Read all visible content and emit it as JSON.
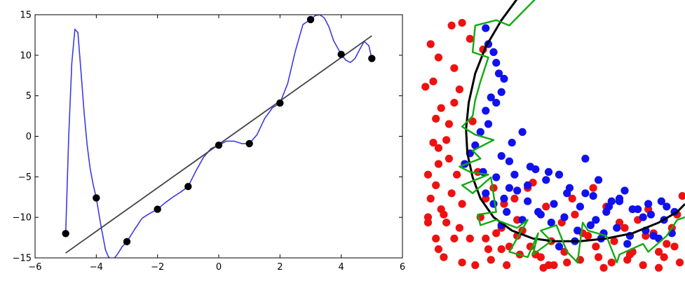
{
  "chart_data": [
    {
      "type": "line",
      "title": "",
      "xlabel": "",
      "ylabel": "",
      "xlim": [
        -6,
        6
      ],
      "ylim": [
        -15,
        15
      ],
      "xticks": [
        -6,
        -4,
        -2,
        0,
        2,
        4,
        6
      ],
      "yticks": [
        -15,
        -10,
        -5,
        0,
        5,
        10,
        15
      ],
      "grid": false,
      "legend": "none",
      "colors": {
        "points": "#000000",
        "fit_line": "#444444",
        "interp_curve": "#3a3ae8"
      },
      "points": {
        "x": [
          -5,
          -4,
          -3,
          -2,
          -1,
          0,
          1,
          2,
          3,
          4,
          5
        ],
        "y": [
          -12,
          -7.6,
          -13,
          -9,
          -6.2,
          -1.1,
          -0.9,
          4.1,
          14.4,
          10.1,
          9.6
        ]
      },
      "fit_line": {
        "x": [
          -5,
          5
        ],
        "y": [
          -14.4,
          12.4
        ]
      },
      "interp_curve": {
        "x": [
          -5,
          -4.9,
          -4.8,
          -4.7,
          -4.6,
          -4.5,
          -4.4,
          -4.3,
          -4.2,
          -4.1,
          -4,
          -3.85,
          -3.7,
          -3.6,
          -3.5,
          -3.4,
          -3.3,
          -3.15,
          -3,
          -2.75,
          -2.5,
          -2.25,
          -2,
          -1.75,
          -1.5,
          -1.25,
          -1,
          -0.75,
          -0.5,
          -0.25,
          0,
          0.25,
          0.5,
          0.75,
          1,
          1.25,
          1.5,
          1.75,
          2,
          2.25,
          2.5,
          2.75,
          3,
          3.15,
          3.3,
          3.45,
          3.6,
          3.75,
          4,
          4.15,
          4.3,
          4.45,
          4.6,
          4.75,
          4.9,
          5
        ],
        "y": [
          -12,
          0,
          9,
          13.2,
          12.8,
          8,
          3,
          -1,
          -4,
          -6,
          -7.6,
          -11,
          -14,
          -14.9,
          -15.2,
          -15,
          -14.5,
          -13.6,
          -13,
          -11.5,
          -10.1,
          -9.5,
          -9,
          -8.2,
          -7.5,
          -6.9,
          -6.2,
          -4.3,
          -2.6,
          -1.5,
          -1.1,
          -0.6,
          -0.6,
          -0.9,
          -0.9,
          0.2,
          2.2,
          3.5,
          4.1,
          6.5,
          10.5,
          13.8,
          14.4,
          14.9,
          15,
          14.6,
          13.5,
          11.8,
          10.1,
          9.4,
          9.1,
          9.6,
          10.7,
          11.7,
          11.2,
          9.6
        ]
      }
    },
    {
      "type": "scatter",
      "title": "",
      "xlabel": "",
      "ylabel": "",
      "axes": "none",
      "xlim": [
        0,
        1
      ],
      "ylim": [
        0,
        1
      ],
      "grid": false,
      "legend": "none",
      "colors": {
        "red": "#ee1111",
        "blue": "#1111ee",
        "smooth_boundary": "#000000",
        "overfit_boundary": "#11aa11"
      },
      "series": [
        {
          "color": "red",
          "x": [
            0.15,
            0.18,
            0.23,
            0.03,
            0.11,
            0.06,
            0.04,
            0.12,
            0.01,
            0.14,
            0.07,
            0.12,
            0.05,
            0.1,
            0.19,
            0.04,
            0.06,
            0.09,
            0.06,
            0.1,
            0.02,
            0.13,
            0.05,
            0.11,
            0.03,
            0.15,
            0.07,
            0.02,
            0.09,
            0.14,
            0.05,
            0.12,
            0.06,
            0.08,
            0.15,
            0.2,
            0.26,
            0.32,
            0.24,
            0.3,
            0.36,
            0.41,
            0.45,
            0.48,
            0.54,
            0.6,
            0.66,
            0.72,
            0.79,
            0.84,
            0.92,
            0.96,
            0.98,
            0.22,
            0.28,
            0.33,
            0.38,
            0.43,
            0.49,
            0.55,
            0.61,
            0.67,
            0.73,
            0.78,
            0.85,
            0.9,
            0.95,
            0.18,
            0.25,
            0.31,
            0.36,
            0.4,
            0.47,
            0.53,
            0.58,
            0.63,
            0.7,
            0.77,
            0.82,
            0.88,
            0.93,
            0.97,
            0.27,
            0.35,
            0.42,
            0.52,
            0.57,
            0.65,
            0.75,
            0.86,
            0.02,
            0.08,
            0.21,
            0.3,
            0.46,
            0.69,
            0.8,
            0.9,
            0.99,
            0.24,
            0.37,
            0.5
          ],
          "y": [
            0.93,
            0.87,
            0.83,
            0.85,
            0.92,
            0.8,
            0.71,
            0.76,
            0.69,
            0.68,
            0.61,
            0.63,
            0.57,
            0.55,
            0.56,
            0.48,
            0.46,
            0.49,
            0.4,
            0.42,
            0.36,
            0.36,
            0.32,
            0.29,
            0.27,
            0.25,
            0.23,
            0.2,
            0.18,
            0.16,
            0.12,
            0.12,
            0.08,
            0.05,
            0.03,
            0.02,
            0.04,
            0.02,
            0.12,
            0.16,
            0.13,
            0.09,
            0.05,
            0.02,
            0.07,
            0.04,
            0.09,
            0.03,
            0.06,
            0.02,
            0.05,
            0.09,
            0.03,
            0.2,
            0.14,
            0.09,
            0.15,
            0.06,
            0.11,
            0.03,
            0.14,
            0.05,
            0.11,
            0.04,
            0.13,
            0.07,
            0.16,
            0.12,
            0.08,
            0.25,
            0.19,
            0.31,
            0.24,
            0.18,
            0.21,
            0.13,
            0.24,
            0.16,
            0.19,
            0.14,
            0.1,
            0.21,
            0.31,
            0.27,
            0.33,
            0.36,
            0.27,
            0.31,
            0.18,
            0.23,
            0.18,
            0.21,
            0.37,
            0.08,
            0.01,
            0.01,
            0.07,
            0.01,
            0.28,
            0.27,
            0.06,
            0.02
          ]
        },
        {
          "color": "blue",
          "x": [
            0.24,
            0.25,
            0.27,
            0.28,
            0.29,
            0.31,
            0.3,
            0.28,
            0.26,
            0.24,
            0.25,
            0.22,
            0.2,
            0.18,
            0.16,
            0.23,
            0.28,
            0.33,
            0.31,
            0.27,
            0.24,
            0.3,
            0.34,
            0.38,
            0.32,
            0.36,
            0.4,
            0.45,
            0.5,
            0.55,
            0.6,
            0.65,
            0.7,
            0.75,
            0.8,
            0.86,
            0.92,
            0.96,
            0.35,
            0.4,
            0.43,
            0.47,
            0.52,
            0.56,
            0.62,
            0.67,
            0.72,
            0.77,
            0.82,
            0.87,
            0.91,
            0.3,
            0.38,
            0.44,
            0.49,
            0.54,
            0.59,
            0.64,
            0.69,
            0.74,
            0.79,
            0.85,
            0.9,
            0.95,
            0.58,
            0.68,
            0.78,
            0.33,
            0.41,
            0.48,
            0.62,
            0.71,
            0.84,
            0.52,
            0.66,
            0.75,
            0.88,
            0.93
          ],
          "y": [
            0.91,
            0.85,
            0.82,
            0.78,
            0.74,
            0.72,
            0.67,
            0.63,
            0.65,
            0.6,
            0.55,
            0.52,
            0.47,
            0.44,
            0.4,
            0.37,
            0.35,
            0.31,
            0.27,
            0.25,
            0.29,
            0.43,
            0.48,
            0.52,
            0.22,
            0.3,
            0.26,
            0.21,
            0.25,
            0.29,
            0.24,
            0.28,
            0.22,
            0.27,
            0.23,
            0.25,
            0.19,
            0.22,
            0.36,
            0.32,
            0.38,
            0.34,
            0.36,
            0.31,
            0.29,
            0.34,
            0.26,
            0.3,
            0.23,
            0.21,
            0.26,
            0.17,
            0.19,
            0.22,
            0.18,
            0.2,
            0.15,
            0.17,
            0.14,
            0.16,
            0.13,
            0.15,
            0.12,
            0.14,
            0.11,
            0.12,
            0.1,
            0.41,
            0.39,
            0.37,
            0.42,
            0.24,
            0.2,
            0.09,
            0.19,
            0.26,
            0.13,
            0.24
          ]
        }
      ],
      "smooth_boundary": {
        "x": [
          0.36,
          0.3,
          0.24,
          0.2,
          0.175,
          0.165,
          0.17,
          0.19,
          0.22,
          0.27,
          0.34,
          0.42,
          0.5,
          0.6,
          0.7,
          0.8,
          0.9,
          0.97,
          1
        ],
        "y": [
          1.02,
          0.94,
          0.84,
          0.74,
          0.63,
          0.53,
          0.44,
          0.35,
          0.27,
          0.2,
          0.15,
          0.12,
          0.11,
          0.11,
          0.12,
          0.14,
          0.18,
          0.22,
          0.25
        ]
      },
      "overfit_boundary": {
        "x": [
          0.43,
          0.38,
          0.33,
          0.28,
          0.2,
          0.19,
          0.25,
          0.22,
          0.2,
          0.19,
          0.15,
          0.2,
          0.27,
          0.19,
          0.22,
          0.14,
          0.18,
          0.25,
          0.15,
          0.19,
          0.26,
          0.28,
          0.21,
          0.22,
          0.28,
          0.36,
          0.4,
          0.33,
          0.4,
          0.44,
          0.42,
          0.49,
          0.45,
          0.51,
          0.53,
          0.55,
          0.59,
          0.61,
          0.63,
          0.7,
          0.74,
          0.75,
          0.84,
          0.86,
          0.93,
          0.97,
          1
        ],
        "y": [
          1.02,
          0.97,
          0.92,
          0.94,
          0.92,
          0.82,
          0.8,
          0.71,
          0.64,
          0.58,
          0.54,
          0.51,
          0.49,
          0.45,
          0.42,
          0.39,
          0.37,
          0.36,
          0.32,
          0.29,
          0.35,
          0.22,
          0.21,
          0.17,
          0.19,
          0.16,
          0.19,
          0.07,
          0.05,
          0.14,
          0.06,
          0.11,
          0.15,
          0.17,
          0.12,
          0.07,
          0.03,
          0.18,
          0.15,
          0.13,
          0.03,
          0.06,
          0.1,
          0.07,
          0.13,
          0.19,
          0.2
        ]
      }
    }
  ]
}
